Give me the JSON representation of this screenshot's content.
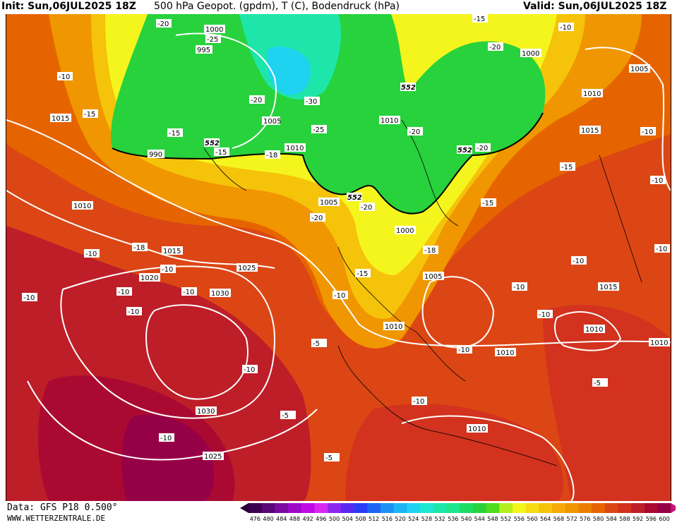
{
  "header": {
    "init": "Init: Sun,06JUL2025 18Z",
    "title": "500 hPa Geopot. (gpdm), T (C), Bodendruck (hPa)",
    "valid": "Valid: Sun,06JUL2025 18Z"
  },
  "footer": {
    "data": "Data: GFS P18 0.500°",
    "site": "WWW.WETTERZENTRALE.DE"
  },
  "legend": {
    "values": [
      "476",
      "480",
      "484",
      "488",
      "492",
      "496",
      "500",
      "504",
      "508",
      "512",
      "516",
      "520",
      "524",
      "528",
      "532",
      "536",
      "540",
      "544",
      "548",
      "552",
      "556",
      "560",
      "564",
      "568",
      "572",
      "576",
      "580",
      "584",
      "588",
      "592",
      "596",
      "600"
    ],
    "colors": [
      "#3c0050",
      "#5a0878",
      "#7a0aa0",
      "#9c0ac8",
      "#c00ae6",
      "#d828f0",
      "#8a28f0",
      "#5a28f0",
      "#2a3cf5",
      "#1e64f5",
      "#1e90f5",
      "#1eb4f5",
      "#1ed2f0",
      "#1ee6d2",
      "#1ee6aa",
      "#1ee68c",
      "#1edc64",
      "#28d23c",
      "#50dc1e",
      "#b4f01e",
      "#f5f51e",
      "#f5dc14",
      "#f5c30a",
      "#f5aa0a",
      "#f09600",
      "#eb7d00",
      "#e66400",
      "#dc4614",
      "#d2321e",
      "#be1e28",
      "#aa0a32",
      "#960046"
    ]
  },
  "map_labels": {
    "isobars": [
      "1000",
      "995",
      "1005",
      "1010",
      "995",
      "1000",
      "1005",
      "1010",
      "990",
      "1010",
      "1000",
      "1015",
      "1010",
      "1015",
      "1005",
      "1010",
      "1015",
      "1020",
      "1025",
      "1030",
      "1005",
      "1000",
      "1010",
      "1005",
      "1010",
      "1010",
      "1015",
      "1010",
      "1010",
      "1030",
      "1025",
      "1010"
    ],
    "temps": [
      "-20",
      "-25",
      "-10",
      "-15",
      "-15",
      "-20",
      "-30",
      "-25",
      "-20",
      "-15",
      "-18",
      "-20",
      "-20",
      "-15",
      "-10",
      "-15",
      "-20",
      "-15",
      "-10",
      "-18",
      "-10",
      "-10",
      "-10",
      "-10",
      "-10",
      "-18",
      "-15",
      "-10",
      "-10",
      "-10",
      "-10",
      "-10",
      "-5",
      "-10",
      "-5",
      "-10",
      "-5",
      "-10",
      "-10",
      "-10",
      "-5",
      "-10",
      "-15",
      "-20",
      "-10",
      "-5",
      "-10"
    ],
    "geopot": [
      "552",
      "552",
      "552",
      "552"
    ]
  }
}
